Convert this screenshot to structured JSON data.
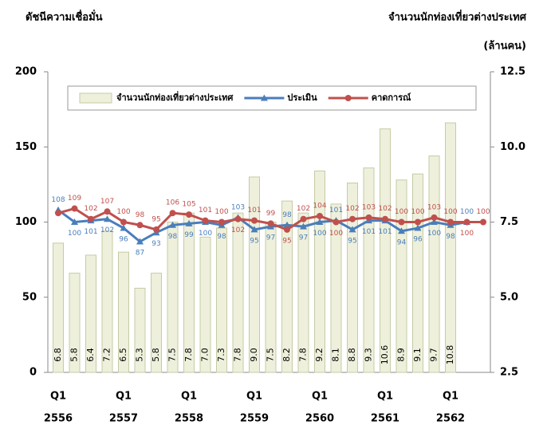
{
  "chart_data": {
    "type": "bar_line",
    "title_left": "ดัชนีความเชื่อมั่น",
    "title_right": "จำนวนนักท่องเที่ยวต่างประเทศ",
    "title_right_unit": "(ล้านคน)",
    "categories": [
      "Q1",
      null,
      null,
      null,
      "Q1",
      null,
      null,
      null,
      "Q1",
      null,
      null,
      null,
      "Q1",
      null,
      null,
      null,
      "Q1",
      null,
      null,
      null,
      "Q1",
      null,
      null,
      null,
      "Q1",
      null,
      null
    ],
    "years": [
      "2556",
      null,
      null,
      null,
      "2557",
      null,
      null,
      null,
      "2558",
      null,
      null,
      null,
      "2559",
      null,
      null,
      null,
      "2560",
      null,
      null,
      null,
      "2561",
      null,
      null,
      null,
      "2562",
      null,
      null
    ],
    "series": [
      {
        "name": "จำนวนนักท่องเที่ยวต่างประเทศ",
        "type": "bar",
        "axis": "y2",
        "color": "#eef0dc",
        "values": [
          6.8,
          5.8,
          6.4,
          7.2,
          6.5,
          5.3,
          5.8,
          7.5,
          7.8,
          7.0,
          7.3,
          7.8,
          9.0,
          7.5,
          8.2,
          7.8,
          9.2,
          8.1,
          8.8,
          9.3,
          10.6,
          8.9,
          9.1,
          9.7,
          10.8,
          null,
          null
        ],
        "value_labels": [
          "6.8",
          "5.8",
          "6.4",
          "7.2",
          "6.5",
          "5.3",
          "5.8",
          "7.5",
          "7.8",
          "7.0",
          "7.3",
          "7.8",
          "9.0",
          "7.5",
          "8.2",
          "7.8",
          "9.2",
          "8.1",
          "8.8",
          "9.3",
          "10.6",
          "8.9",
          "9.1",
          "9.7",
          "10.8",
          null,
          null
        ]
      },
      {
        "name": "ประเมิน",
        "type": "line",
        "marker": "triangle",
        "color": "#4a7ebb",
        "values": [
          108,
          100,
          101,
          102,
          96,
          87,
          93,
          98,
          99,
          100,
          98,
          103,
          95,
          97,
          98,
          97,
          100,
          101,
          95,
          101,
          101,
          94,
          96,
          100,
          98,
          100,
          null
        ]
      },
      {
        "name": "คาดการณ์",
        "type": "line",
        "marker": "circle",
        "color": "#c0504d",
        "values": [
          106,
          109,
          102,
          107,
          100,
          98,
          95,
          106,
          105,
          101,
          100,
          102,
          101,
          99,
          95,
          102,
          104,
          100,
          102,
          103,
          102,
          100,
          100,
          103,
          100,
          100,
          100
        ],
        "value_labels": [
          null,
          "109",
          "102",
          "107",
          "100",
          "98",
          "95",
          "106",
          "105",
          "101",
          "100",
          "102",
          "101",
          "99",
          "95",
          "102",
          "104",
          "100",
          "102",
          "103",
          "102",
          "100",
          "100",
          "103",
          "100",
          "100",
          "100"
        ]
      }
    ],
    "ylim": [
      0,
      200
    ],
    "yticks": [
      0,
      50,
      100,
      150,
      200
    ],
    "y2lim": [
      2.5,
      12.5
    ],
    "y2ticks": [
      2.5,
      {
        "value": 5,
        "label": "5.0"
      },
      7.5,
      {
        "value": 10,
        "label": "10.0"
      },
      12.5
    ]
  }
}
